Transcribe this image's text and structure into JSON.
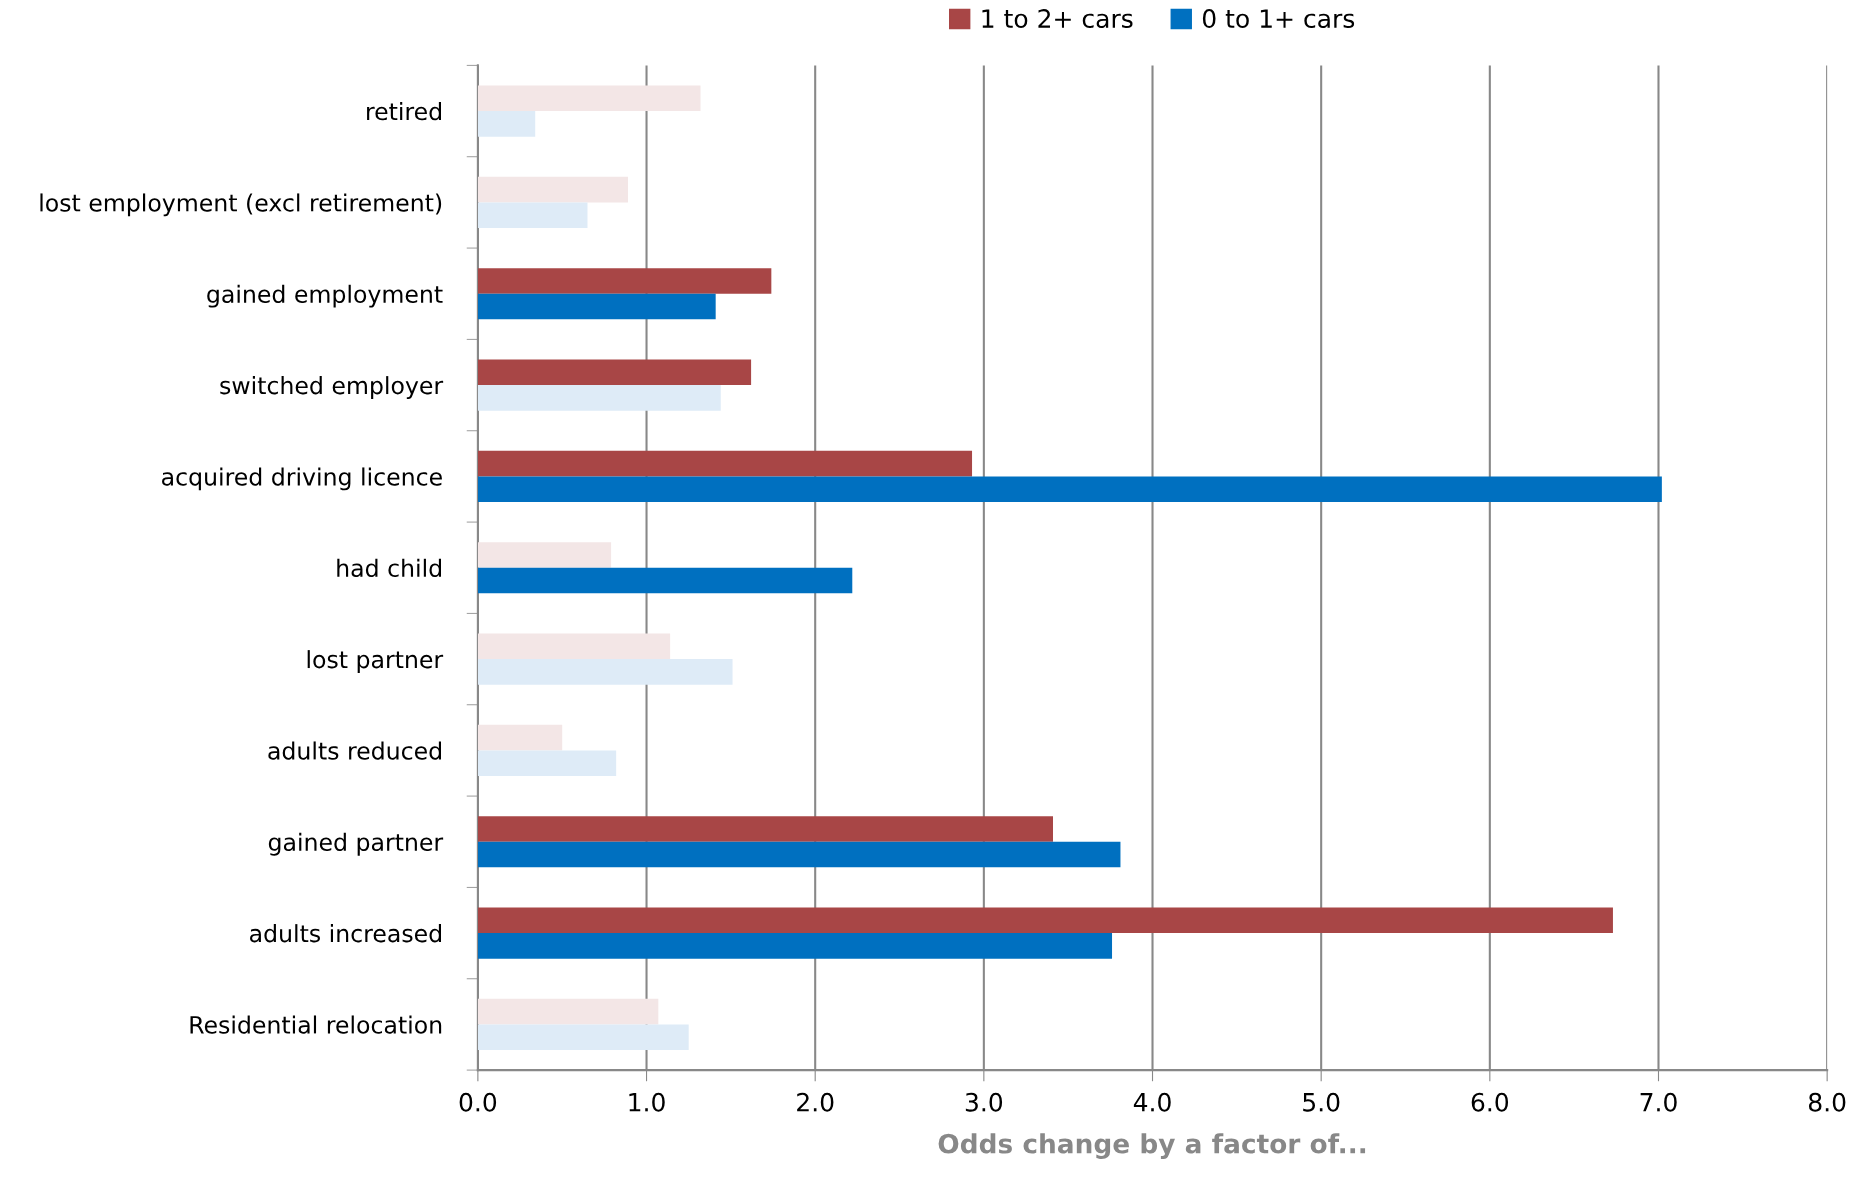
{
  "chart_data": {
    "type": "bar",
    "orientation": "horizontal",
    "xlabel": "Odds change by a factor of...",
    "categories": [
      "retired",
      "lost employment (excl retirement)",
      "gained employment",
      "switched employer",
      "acquired driving licence",
      "had child",
      "lost partner",
      "adults reduced",
      "gained partner",
      "adults increased",
      "Residential relocation"
    ],
    "series": [
      {
        "name": "1 to 2+ cars",
        "color": "#a84646",
        "colors": [
          "#f3e6e6",
          "#f3e6e6",
          "#a84646",
          "#a84646",
          "#a84646",
          "#f3e6e6",
          "#f3e6e6",
          "#f3e6e6",
          "#a84646",
          "#a84646",
          "#f3e6e6"
        ],
        "values": [
          1.32,
          0.89,
          1.74,
          1.62,
          2.93,
          0.79,
          1.14,
          0.5,
          3.41,
          6.73,
          1.07
        ]
      },
      {
        "name": "0 to 1+ cars",
        "color": "#0070c0",
        "colors": [
          "#deebf7",
          "#deebf7",
          "#0070c0",
          "#deebf7",
          "#0070c0",
          "#0070c0",
          "#deebf7",
          "#deebf7",
          "#0070c0",
          "#0070c0",
          "#deebf7"
        ],
        "values": [
          0.34,
          0.65,
          1.41,
          1.44,
          7.02,
          2.22,
          1.51,
          0.82,
          3.81,
          3.76,
          1.25
        ]
      }
    ],
    "xlim": [
      0,
      8
    ],
    "xticks": [
      {
        "value": 0,
        "label": "0.0"
      },
      {
        "value": 1,
        "label": "1.0"
      },
      {
        "value": 2,
        "label": "2.0"
      },
      {
        "value": 3,
        "label": "3.0"
      },
      {
        "value": 4,
        "label": "4.0"
      },
      {
        "value": 5,
        "label": "5.0"
      },
      {
        "value": 6,
        "label": "6.0"
      },
      {
        "value": 7,
        "label": "7.0"
      },
      {
        "value": 8,
        "label": "8.0"
      }
    ],
    "grid": "x",
    "legend": "top"
  }
}
